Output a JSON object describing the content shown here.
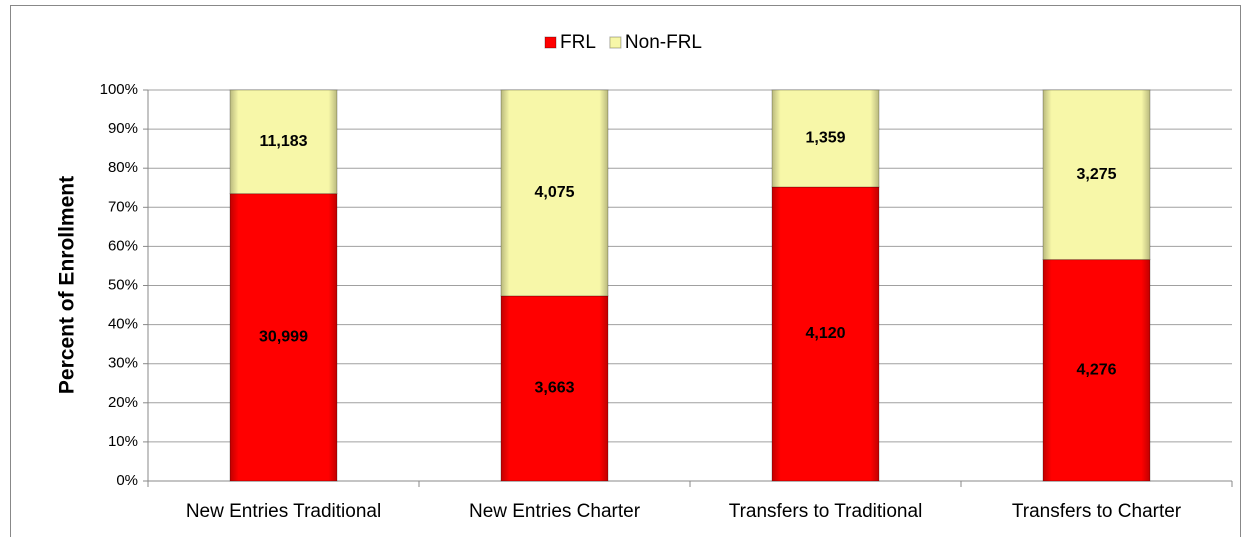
{
  "chart_data": {
    "type": "bar",
    "stacking": "percent",
    "ylabel": "Percent of Enrollment",
    "categories": [
      "New Entries Traditional",
      "New Entries Charter",
      "Transfers to Traditional",
      "Transfers to Charter"
    ],
    "series": [
      {
        "name": "FRL",
        "color": "#ff0000",
        "values": [
          30999,
          3663,
          4120,
          4276
        ],
        "value_labels": [
          "30,999",
          "3,663",
          "4,120",
          "4,276"
        ]
      },
      {
        "name": "Non-FRL",
        "color": "#f7f7a8",
        "values": [
          11183,
          4075,
          1359,
          3275
        ],
        "value_labels": [
          "11,183",
          "4,075",
          "1,359",
          "3,275"
        ]
      }
    ],
    "ylim": [
      0,
      100
    ],
    "yticks": [
      {
        "value": 0,
        "label": "0%"
      },
      {
        "value": 10,
        "label": "10%"
      },
      {
        "value": 20,
        "label": "20%"
      },
      {
        "value": 30,
        "label": "30%"
      },
      {
        "value": 40,
        "label": "40%"
      },
      {
        "value": 50,
        "label": "50%"
      },
      {
        "value": 60,
        "label": "60%"
      },
      {
        "value": 70,
        "label": "70%"
      },
      {
        "value": 80,
        "label": "80%"
      },
      {
        "value": 90,
        "label": "90%"
      },
      {
        "value": 100,
        "label": "100%"
      }
    ],
    "grid": true,
    "legend": "top"
  }
}
